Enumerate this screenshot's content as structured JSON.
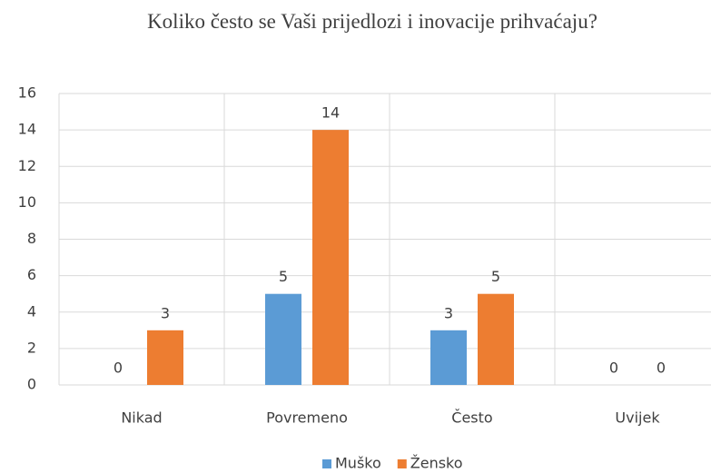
{
  "chart_data": {
    "type": "bar",
    "title": "Koliko često se Vaši prijedlozi i inovacije prihvaćaju?",
    "categories": [
      "Nikad",
      "Povremeno",
      "Često",
      "Uvijek"
    ],
    "series": [
      {
        "name": "Muško",
        "color": "#5b9bd5",
        "values": [
          0,
          5,
          3,
          0
        ]
      },
      {
        "name": "Žensko",
        "color": "#ed7d31",
        "values": [
          3,
          14,
          5,
          0
        ]
      }
    ],
    "ylim": [
      0,
      16
    ],
    "yticks": [
      0,
      2,
      4,
      6,
      8,
      10,
      12,
      14,
      16
    ],
    "grid": true,
    "legend": "bottom"
  }
}
